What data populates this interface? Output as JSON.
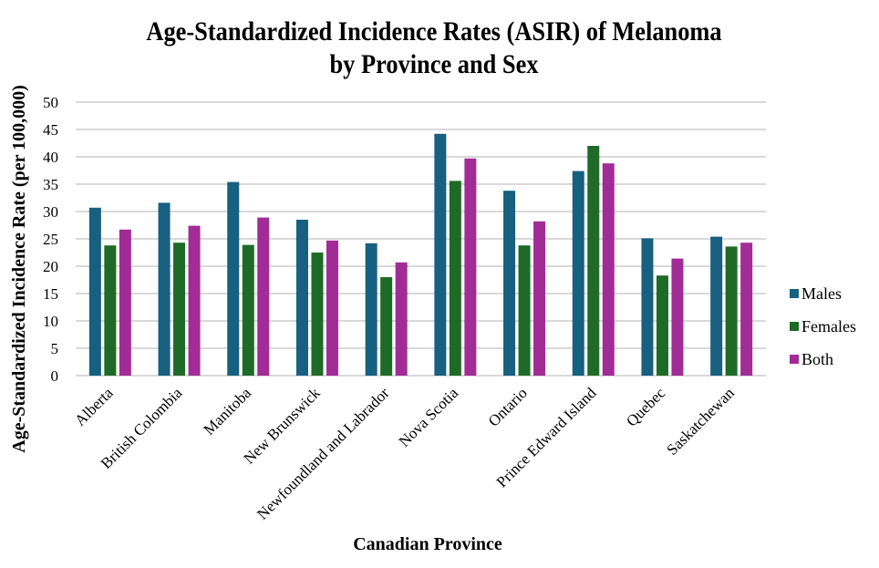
{
  "chart_data": {
    "type": "bar",
    "title": "Age-Standardized Incidence Rates (ASIR) of Melanoma",
    "subtitle": "by Province and Sex",
    "xlabel": "Canadian Province",
    "ylabel": "Age-Standardized Incidence Rate (per 100,000)",
    "ylim": [
      0,
      50
    ],
    "yticks": [
      0,
      5,
      10,
      15,
      20,
      25,
      30,
      35,
      40,
      45,
      50
    ],
    "grid": true,
    "legend_position": "right",
    "categories": [
      "Alberta",
      "British Colombia",
      "Manitoba",
      "New Brunswick",
      "Newfoundland and Labrador",
      "Nova Scotia",
      "Ontario",
      "Prince Edward Island",
      "Quebec",
      "Saskatchewan"
    ],
    "series": [
      {
        "name": "Males",
        "color": "#17607f",
        "values": [
          30.7,
          31.6,
          35.4,
          28.5,
          24.2,
          44.2,
          33.8,
          37.4,
          25.1,
          25.4
        ]
      },
      {
        "name": "Females",
        "color": "#1e6b27",
        "values": [
          23.8,
          24.3,
          23.9,
          22.5,
          18.0,
          35.6,
          23.8,
          42.0,
          18.3,
          23.6
        ]
      },
      {
        "name": "Both",
        "color": "#a22c95",
        "values": [
          26.7,
          27.4,
          28.9,
          24.7,
          20.7,
          39.7,
          28.2,
          38.8,
          21.4,
          24.3
        ]
      }
    ]
  }
}
